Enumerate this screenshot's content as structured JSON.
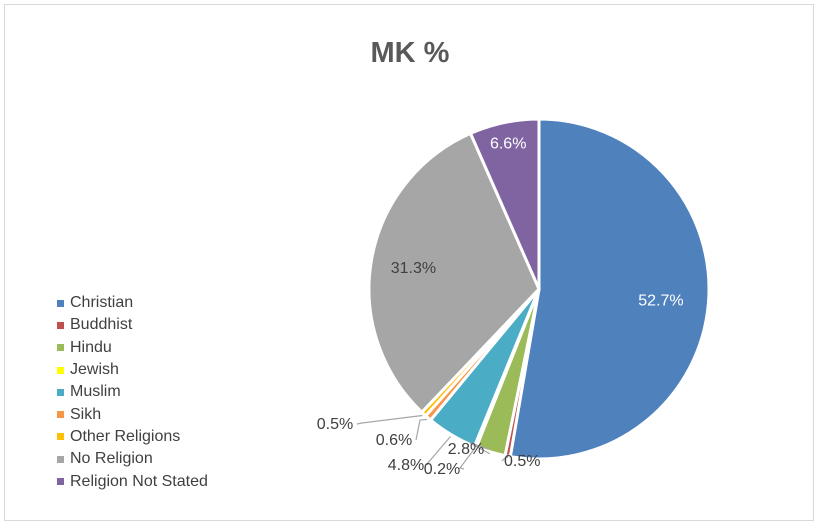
{
  "chart_data": {
    "type": "pie",
    "title": "MK %",
    "categories": [
      "Christian",
      "Buddhist",
      "Hindu",
      "Jewish",
      "Muslim",
      "Sikh",
      "Other Religions",
      "No Religion",
      "Religion Not Stated"
    ],
    "values": [
      52.7,
      0.5,
      2.8,
      0.2,
      4.8,
      0.6,
      0.5,
      31.3,
      6.6
    ],
    "labels": [
      "52.7%",
      "0.5%",
      "2.8%",
      "0.2%",
      "4.8%",
      "0.6%",
      "0.5%",
      "31.3%",
      "6.6%"
    ],
    "colors": [
      "#4f81bd",
      "#c0504d",
      "#9bbb59",
      "#ffff00",
      "#4bacc6",
      "#f79646",
      "#ffc000",
      "#a6a6a6",
      "#8064a2"
    ],
    "legend_position": "left",
    "start_angle": "12 o'clock, clockwise"
  }
}
